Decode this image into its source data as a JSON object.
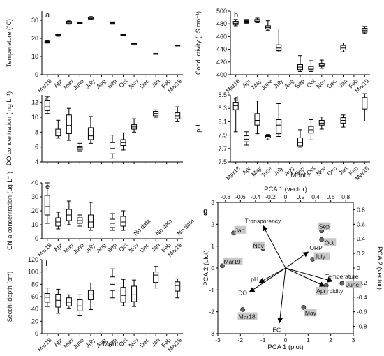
{
  "months": [
    "Mar18",
    "Apr",
    "May",
    "June",
    "July",
    "Aug",
    "Sep",
    "Oct",
    "Nov",
    "Dec",
    "Jan",
    "Feb",
    "Mar19"
  ],
  "month_label": "Month",
  "chart_data": [
    {
      "panel": "a",
      "type": "box",
      "ylabel": "Temperature (°C)",
      "ylim": [
        0,
        35
      ],
      "yticks": [
        0,
        10,
        20,
        30
      ],
      "show_xticks": true,
      "boxes": [
        {
          "month": "Mar18",
          "min": 17.4,
          "q1": 17.7,
          "median": 18.0,
          "q3": 18.3,
          "max": 18.7
        },
        {
          "month": "Apr",
          "min": 21.2,
          "q1": 21.5,
          "median": 21.9,
          "q3": 22.2,
          "max": 22.5
        },
        {
          "month": "May",
          "min": 27.8,
          "q1": 28.2,
          "median": 28.8,
          "q3": 29.4,
          "max": 30.0
        },
        {
          "month": "June",
          "min": 28.3,
          "q1": 28.4,
          "median": 28.5,
          "q3": 28.6,
          "max": 28.7
        },
        {
          "month": "July",
          "min": 30.3,
          "q1": 30.7,
          "median": 31.1,
          "q3": 31.6,
          "max": 32.0
        },
        {
          "month": "Sep",
          "min": 27.8,
          "q1": 28.1,
          "median": 28.5,
          "q3": 28.8,
          "max": 29.1
        },
        {
          "month": "Oct",
          "min": 21.8,
          "q1": 21.9,
          "median": 22.0,
          "q3": 22.1,
          "max": 22.2
        },
        {
          "month": "Nov",
          "min": 16.9,
          "q1": 17.0,
          "median": 17.1,
          "q3": 17.2,
          "max": 17.3
        },
        {
          "month": "Jan",
          "min": 11.3,
          "q1": 11.4,
          "median": 11.5,
          "q3": 11.6,
          "max": 11.7
        },
        {
          "month": "Mar19",
          "min": 15.9,
          "q1": 16.0,
          "median": 16.1,
          "q3": 16.2,
          "max": 16.3
        }
      ],
      "texts": []
    },
    {
      "panel": "b",
      "type": "box",
      "ylabel": "Conductivity (μS cm⁻¹)",
      "ylim": [
        400,
        500
      ],
      "yticks": [
        400,
        420,
        440,
        460,
        480,
        500
      ],
      "show_xticks": true,
      "boxes": [
        {
          "month": "Mar18",
          "min": 477,
          "q1": 479,
          "median": 481,
          "q3": 484,
          "max": 487
        },
        {
          "month": "Apr",
          "min": 481,
          "q1": 482,
          "median": 484,
          "q3": 485,
          "max": 487
        },
        {
          "month": "May",
          "min": 482,
          "q1": 484,
          "median": 486,
          "q3": 487,
          "max": 489
        },
        {
          "month": "June",
          "min": 470,
          "q1": 472,
          "median": 474,
          "q3": 477,
          "max": 485
        },
        {
          "month": "July",
          "min": 436,
          "q1": 438,
          "median": 442,
          "q3": 447,
          "max": 472
        },
        {
          "month": "Sep",
          "min": 405,
          "q1": 408,
          "median": 412,
          "q3": 416,
          "max": 430
        },
        {
          "month": "Oct",
          "min": 405,
          "q1": 408,
          "median": 410,
          "q3": 413,
          "max": 422
        },
        {
          "month": "Nov",
          "min": 410,
          "q1": 413,
          "median": 415,
          "q3": 418,
          "max": 423
        },
        {
          "month": "Jan",
          "min": 436,
          "q1": 439,
          "median": 442,
          "q3": 446,
          "max": 450
        },
        {
          "month": "Mar19",
          "min": 465,
          "q1": 467,
          "median": 470,
          "q3": 473,
          "max": 476
        }
      ],
      "texts": []
    },
    {
      "panel": "c",
      "type": "box",
      "ylabel": "DO concentration (mg L⁻¹)",
      "ylim": [
        4,
        13
      ],
      "yticks": [
        4,
        6,
        8,
        10,
        12
      ],
      "show_xticks": false,
      "boxes": [
        {
          "month": "Mar18",
          "min": 10.5,
          "q1": 10.9,
          "median": 11.4,
          "q3": 12.3,
          "max": 12.8
        },
        {
          "month": "Apr",
          "min": 7.2,
          "q1": 7.5,
          "median": 7.9,
          "q3": 8.4,
          "max": 9.6
        },
        {
          "month": "May",
          "min": 6.9,
          "q1": 7.8,
          "median": 8.9,
          "q3": 10.3,
          "max": 11.2
        },
        {
          "month": "June",
          "min": 5.4,
          "q1": 5.6,
          "median": 5.9,
          "q3": 6.1,
          "max": 6.5
        },
        {
          "month": "July",
          "min": 6.5,
          "q1": 7.0,
          "median": 7.5,
          "q3": 8.6,
          "max": 10.1
        },
        {
          "month": "Sep",
          "min": 4.5,
          "q1": 5.1,
          "median": 5.8,
          "q3": 6.6,
          "max": 7.6
        },
        {
          "month": "Oct",
          "min": 5.6,
          "q1": 6.2,
          "median": 6.6,
          "q3": 7.0,
          "max": 7.9
        },
        {
          "month": "Nov",
          "min": 8.0,
          "q1": 8.4,
          "median": 8.7,
          "q3": 9.0,
          "max": 9.8
        },
        {
          "month": "Jan",
          "min": 10.0,
          "q1": 10.2,
          "median": 10.5,
          "q3": 10.8,
          "max": 11.0
        },
        {
          "month": "Mar19",
          "min": 9.4,
          "q1": 9.8,
          "median": 10.2,
          "q3": 10.6,
          "max": 11.4
        }
      ],
      "texts": []
    },
    {
      "panel": "d",
      "type": "box",
      "ylabel": "pH",
      "ylim": [
        7.5,
        8.5
      ],
      "yticks": [
        7.5,
        7.7,
        7.9,
        8.1,
        8.3,
        8.5
      ],
      "show_xticks": true,
      "boxes": [
        {
          "month": "Mar18",
          "min": 7.95,
          "q1": 8.28,
          "median": 8.34,
          "q3": 8.39,
          "max": 8.45
        },
        {
          "month": "Apr",
          "min": 7.75,
          "q1": 7.8,
          "median": 7.84,
          "q3": 7.89,
          "max": 7.95
        },
        {
          "month": "May",
          "min": 7.92,
          "q1": 8.05,
          "median": 8.12,
          "q3": 8.22,
          "max": 8.41
        },
        {
          "month": "June",
          "min": 7.83,
          "q1": 7.86,
          "median": 7.88,
          "q3": 7.89,
          "max": 7.91
        },
        {
          "month": "July",
          "min": 7.88,
          "q1": 7.92,
          "median": 8.05,
          "q3": 8.13,
          "max": 8.37
        },
        {
          "month": "Sep",
          "min": 7.72,
          "q1": 7.74,
          "median": 7.79,
          "q3": 7.86,
          "max": 7.98
        },
        {
          "month": "Oct",
          "min": 7.83,
          "q1": 7.93,
          "median": 7.98,
          "q3": 8.03,
          "max": 8.13
        },
        {
          "month": "Nov",
          "min": 7.99,
          "q1": 8.05,
          "median": 8.08,
          "q3": 8.12,
          "max": 8.17
        },
        {
          "month": "Jan",
          "min": 8.02,
          "q1": 8.08,
          "median": 8.12,
          "q3": 8.16,
          "max": 8.2
        },
        {
          "month": "Mar19",
          "min": 8.11,
          "q1": 8.29,
          "median": 8.38,
          "q3": 8.46,
          "max": 8.52
        }
      ],
      "texts": []
    },
    {
      "panel": "e",
      "type": "box",
      "ylabel": "Chl-a concentration (μg L⁻¹)",
      "ylim": [
        0,
        40
      ],
      "yticks": [
        0,
        10,
        20,
        30,
        40
      ],
      "show_xticks": true,
      "boxes": [
        {
          "month": "Mar18",
          "min": 11,
          "q1": 17,
          "median": 23,
          "q3": 31,
          "max": 40
        },
        {
          "month": "Apr",
          "min": 7,
          "q1": 9,
          "median": 12,
          "q3": 15,
          "max": 19
        },
        {
          "month": "May",
          "min": 10,
          "q1": 13,
          "median": 17,
          "q3": 21,
          "max": 27
        },
        {
          "month": "June",
          "min": 9,
          "q1": 11,
          "median": 13,
          "q3": 15,
          "max": 17
        },
        {
          "month": "July",
          "min": 6,
          "q1": 8,
          "median": 12,
          "q3": 17,
          "max": 26
        },
        {
          "month": "Sep",
          "min": 6,
          "q1": 8,
          "median": 11,
          "q3": 14,
          "max": 18
        },
        {
          "month": "Oct",
          "min": 6,
          "q1": 9,
          "median": 12,
          "q3": 16,
          "max": 20
        }
      ],
      "texts": [
        {
          "month": "Nov",
          "text": "No data"
        },
        {
          "month": "Jan",
          "text": "No data"
        },
        {
          "month": "Mar19",
          "text": "No data"
        }
      ]
    },
    {
      "panel": "f",
      "type": "box",
      "ylabel": "Secchi depth (cm)",
      "ylim": [
        0,
        120
      ],
      "yticks": [
        0,
        20,
        40,
        60,
        80,
        100,
        120
      ],
      "show_xticks": true,
      "boxes": [
        {
          "month": "Mar18",
          "min": 44,
          "q1": 51,
          "median": 59,
          "q3": 65,
          "max": 74
        },
        {
          "month": "Apr",
          "min": 33,
          "q1": 43,
          "median": 54,
          "q3": 64,
          "max": 72
        },
        {
          "month": "May",
          "min": 41,
          "q1": 45,
          "median": 51,
          "q3": 58,
          "max": 63
        },
        {
          "month": "June",
          "min": 30,
          "q1": 37,
          "median": 45,
          "q3": 55,
          "max": 63
        },
        {
          "month": "July",
          "min": 39,
          "q1": 55,
          "median": 63,
          "q3": 70,
          "max": 82
        },
        {
          "month": "Sep",
          "min": 58,
          "q1": 70,
          "median": 80,
          "q3": 92,
          "max": 105
        },
        {
          "month": "Oct",
          "min": 45,
          "q1": 51,
          "median": 62,
          "q3": 75,
          "max": 88
        },
        {
          "month": "Nov",
          "min": 44,
          "q1": 52,
          "median": 63,
          "q3": 77,
          "max": 87
        },
        {
          "month": "Jan",
          "min": 74,
          "q1": 83,
          "median": 95,
          "q3": 100,
          "max": 109
        },
        {
          "month": "Mar19",
          "min": 58,
          "q1": 69,
          "median": 78,
          "q3": 84,
          "max": 89
        }
      ],
      "texts": []
    },
    {
      "panel": "g",
      "type": "scatter",
      "xlabel_bottom": "PCA 1 (plot)",
      "xlabel_top": "PCA 1 (vector)",
      "ylabel_left": "PCA 2 (plot)",
      "ylabel_right": "PCA 2 (vector)",
      "xlim_plot": [
        -3,
        3
      ],
      "xticks_plot": [
        -3,
        -2,
        -1,
        0,
        1,
        2,
        3
      ],
      "ylim_plot": [
        -3,
        3
      ],
      "yticks_plot": [
        -3,
        -2,
        -1,
        0,
        1,
        2,
        3
      ],
      "xticks_vector": [
        -0.8,
        -0.6,
        -0.4,
        -0.2,
        0,
        0.2,
        0.4,
        0.6,
        0.8
      ],
      "yticks_vector": [
        -0.8,
        -0.6,
        -0.4,
        -0.2,
        0,
        0.2,
        0.4,
        0.6,
        0.8
      ],
      "points": [
        {
          "label": "Jan",
          "x": -2.3,
          "y": 1.6
        },
        {
          "label": "Nov",
          "x": -1.0,
          "y": 0.9
        },
        {
          "label": "Mar19",
          "x": -2.8,
          "y": 0.1
        },
        {
          "label": "Sep",
          "x": 1.6,
          "y": 1.7
        },
        {
          "label": "Oct",
          "x": 1.6,
          "y": 1.3
        },
        {
          "label": "July",
          "x": 1.2,
          "y": 0.4
        },
        {
          "label": "Apr",
          "x": 1.8,
          "y": -0.8
        },
        {
          "label": "June",
          "x": 2.5,
          "y": -0.7
        },
        {
          "label": "Mar18",
          "x": -1.9,
          "y": -1.9
        },
        {
          "label": "May",
          "x": 0.8,
          "y": -1.8
        }
      ],
      "vectors": [
        {
          "label": "Transparency",
          "x": -0.3,
          "y": 0.58
        },
        {
          "label": "ORP",
          "x": 0.3,
          "y": 0.22
        },
        {
          "label": "Temperature",
          "x": 0.62,
          "y": -0.18
        },
        {
          "label": "Turbidity",
          "x": 0.52,
          "y": -0.25
        },
        {
          "label": "pH",
          "x": -0.35,
          "y": -0.2
        },
        {
          "label": "DO",
          "x": -0.48,
          "y": -0.33
        },
        {
          "label": "EC",
          "x": -0.08,
          "y": -0.75
        }
      ]
    }
  ]
}
